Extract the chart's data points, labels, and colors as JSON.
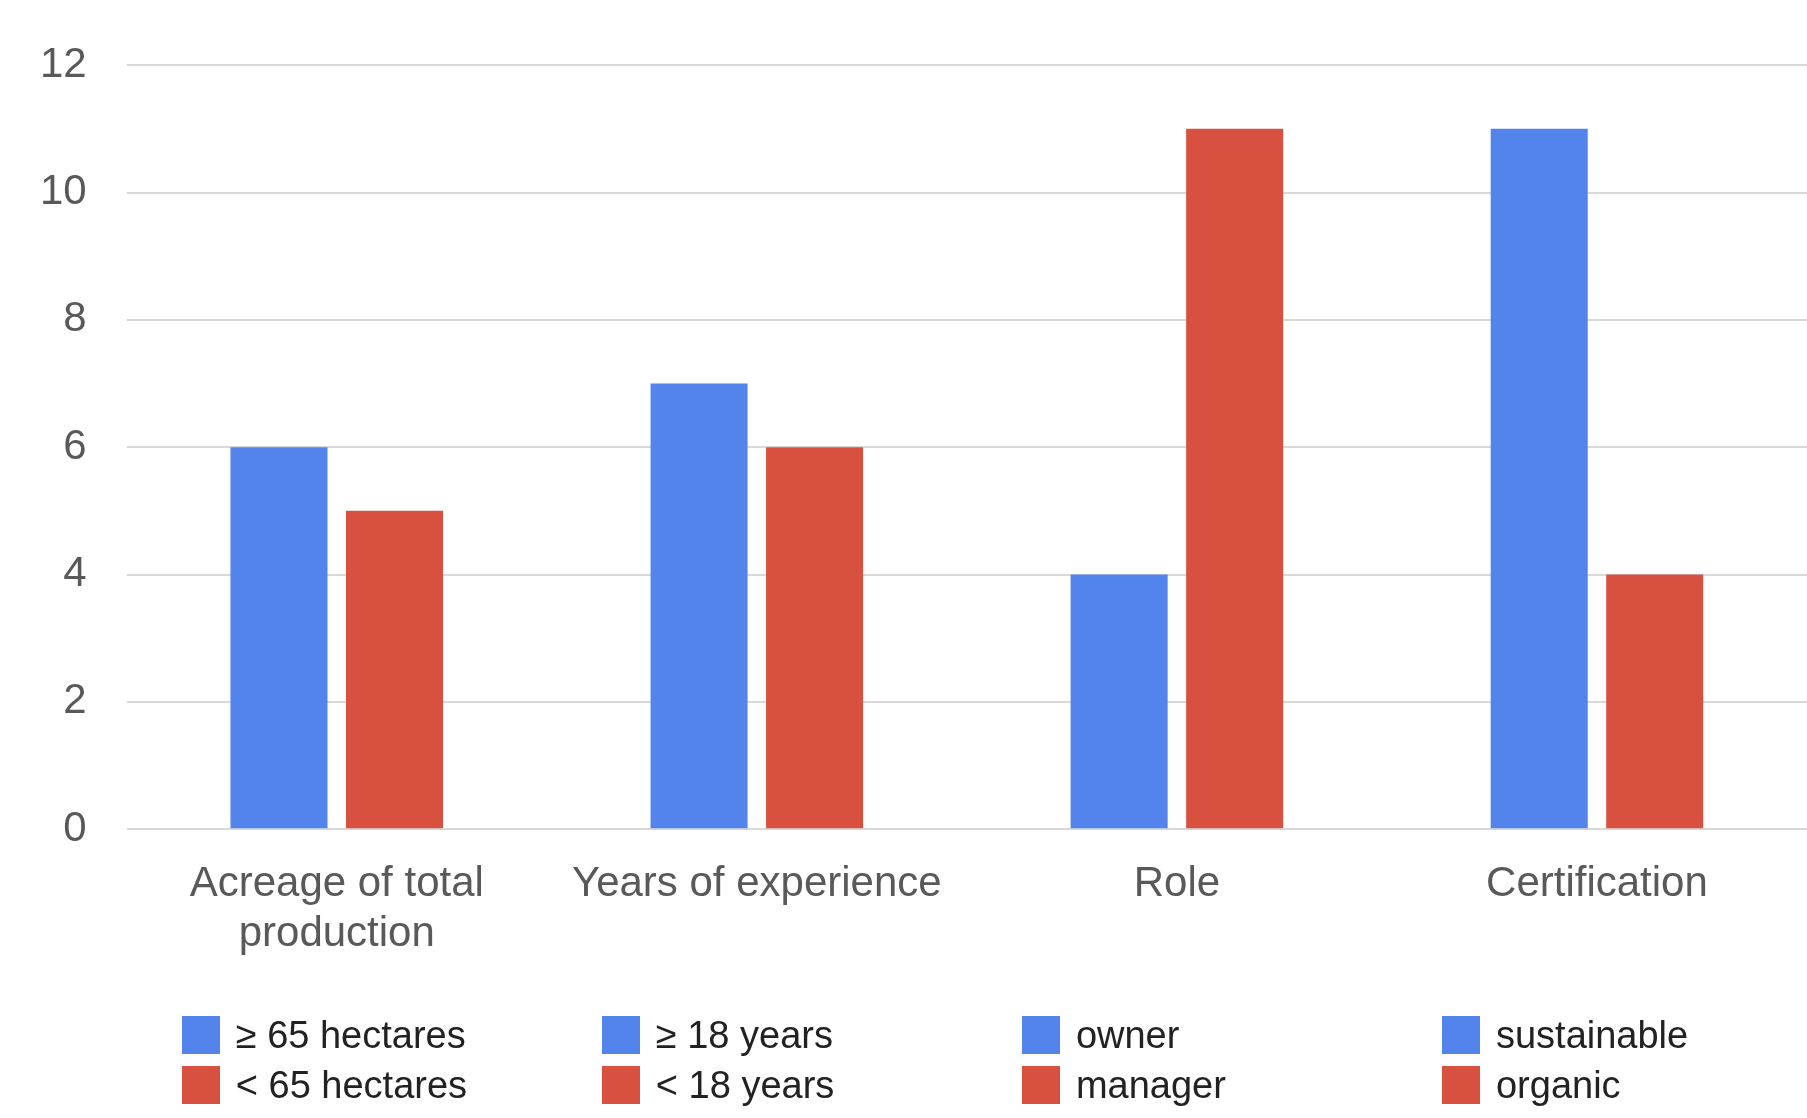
{
  "chart_data": {
    "type": "bar",
    "categories": [
      "Acreage of total production",
      "Years of experience",
      "Role",
      "Certification"
    ],
    "series": [
      {
        "color": "#5384ec",
        "values": [
          6,
          7,
          4,
          11
        ]
      },
      {
        "color": "#d85040",
        "values": [
          5,
          6,
          11,
          4
        ]
      }
    ],
    "ylim": [
      0,
      12
    ],
    "yticks": [
      0,
      2,
      4,
      6,
      8,
      10,
      12
    ],
    "grid": "y",
    "legend": false,
    "annotations": [
      "≥ 65 hectares",
      "< 65 hectares",
      "≥ 18 years",
      "< 18 years",
      "owner",
      "manager",
      "sustainable",
      "organic"
    ]
  }
}
